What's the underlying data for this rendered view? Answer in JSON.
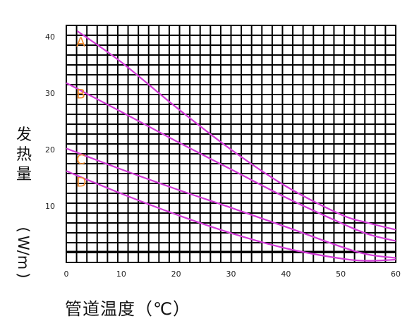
{
  "chart_data": {
    "type": "line",
    "xlabel": "管道温度（℃）",
    "ylabel": "发热量（W/m）",
    "xlim": [
      0,
      60
    ],
    "ylim": [
      0,
      42
    ],
    "xticks": [
      0,
      10,
      20,
      30,
      40,
      50,
      60
    ],
    "yticks": [
      10,
      20,
      30,
      40
    ],
    "grid": true,
    "series": [
      {
        "name": "A",
        "color": "#d23ad8",
        "x": [
          2,
          10,
          20,
          30,
          40,
          50,
          55,
          60
        ],
        "y": [
          41,
          35.5,
          27.5,
          20,
          13.5,
          8.5,
          7,
          5.8
        ]
      },
      {
        "name": "B",
        "color": "#d23ad8",
        "x": [
          0,
          10,
          20,
          30,
          40,
          50,
          55,
          60
        ],
        "y": [
          31.8,
          26.7,
          21.5,
          16.5,
          11.5,
          7,
          5,
          3.8
        ]
      },
      {
        "name": "C",
        "color": "#d23ad8",
        "x": [
          0,
          10,
          20,
          30,
          40,
          50,
          55,
          60
        ],
        "y": [
          20.2,
          16.5,
          13,
          9.7,
          6.3,
          2.8,
          1.4,
          0.8
        ]
      },
      {
        "name": "D",
        "color": "#d23ad8",
        "x": [
          0,
          10,
          20,
          30,
          40,
          50,
          55,
          60
        ],
        "y": [
          16.2,
          12.2,
          8.5,
          5.2,
          2.5,
          0.7,
          0.3,
          0.5
        ]
      }
    ]
  }
}
